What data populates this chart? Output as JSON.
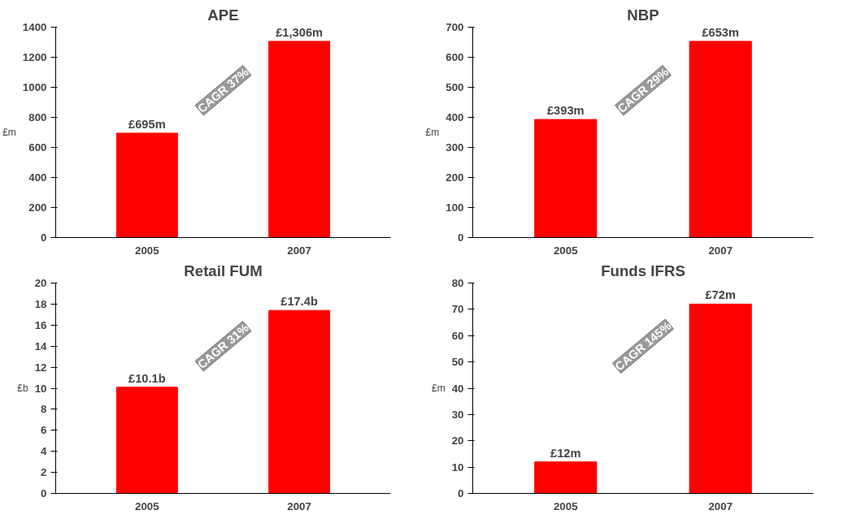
{
  "chart_data": [
    {
      "type": "bar",
      "title": "APE",
      "ylabel": "£m",
      "categories": [
        "2005",
        "2007"
      ],
      "values": [
        695,
        1306
      ],
      "color": "#ff0000",
      "value_labels": [
        "£695m",
        "£1,306m"
      ],
      "ylim": [
        0,
        1400
      ],
      "yticks": [
        0,
        200,
        400,
        600,
        800,
        1000,
        1200,
        1400
      ],
      "grid": false,
      "annotations": [
        "CAGR 37%"
      ]
    },
    {
      "type": "bar",
      "title": "NBP",
      "ylabel": "£m",
      "categories": [
        "2005",
        "2007"
      ],
      "values": [
        393,
        653
      ],
      "color": "#ff0000",
      "value_labels": [
        "£393m",
        "£653m"
      ],
      "ylim": [
        0,
        700
      ],
      "yticks": [
        0,
        100,
        200,
        300,
        400,
        500,
        600,
        700
      ],
      "grid": false,
      "annotations": [
        "CAGR 29%"
      ]
    },
    {
      "type": "bar",
      "title": "Retail FUM",
      "ylabel": "£b",
      "categories": [
        "2005",
        "2007"
      ],
      "values": [
        10.1,
        17.4
      ],
      "color": "#ff0000",
      "value_labels": [
        "£10.1b",
        "£17.4b"
      ],
      "ylim": [
        0,
        20
      ],
      "yticks": [
        0,
        2,
        4,
        6,
        8,
        10,
        12,
        14,
        16,
        18,
        20
      ],
      "grid": false,
      "annotations": [
        "CAGR 31%"
      ]
    },
    {
      "type": "bar",
      "title": "Funds IFRS",
      "ylabel": "£m",
      "categories": [
        "2005",
        "2007"
      ],
      "values": [
        12,
        72
      ],
      "color": "#ff0000",
      "value_labels": [
        "£12m",
        "£72m"
      ],
      "ylim": [
        0,
        80
      ],
      "yticks": [
        0,
        10,
        20,
        30,
        40,
        50,
        60,
        70,
        80
      ],
      "grid": false,
      "annotations": [
        "CAGR 145%"
      ]
    }
  ]
}
